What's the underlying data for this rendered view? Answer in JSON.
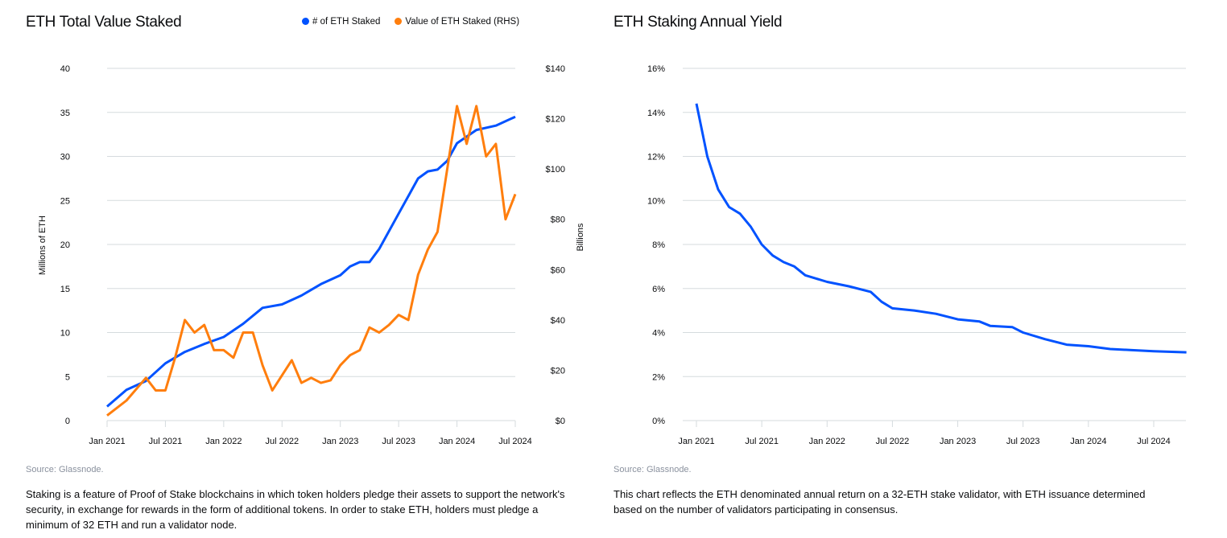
{
  "left": {
    "title": "ETH Total Value Staked",
    "legend": [
      {
        "label": "# of ETH Staked",
        "color": "#0052ff"
      },
      {
        "label": "Value of ETH Staked (RHS)",
        "color": "#ff7e0d"
      }
    ],
    "source": "Source: Glassnode.",
    "description": "Staking is a feature of Proof of Stake  blockchains in which token holders pledge their assets to support the network's security, in exchange for rewards in the form of additional tokens. In order to stake ETH, holders must pledge a minimum of 32 ETH and run a validator node."
  },
  "right": {
    "title": "ETH Staking Annual Yield",
    "source": "Source: Glassnode.",
    "description": "This chart reflects the ETH denominated annual return on a 32-ETH stake validator, with ETH issuance determined based on the number of validators participating in consensus."
  },
  "chart_data": [
    {
      "type": "line",
      "title": "ETH Total Value Staked",
      "ylabel": "Millions of ETH",
      "y2label": "Billions",
      "ylim": [
        0,
        40
      ],
      "y2lim": [
        0,
        140
      ],
      "grid": true,
      "legend": "top",
      "xticks": [
        "Jan 2021",
        "Jul 2021",
        "Jan 2022",
        "Jul 2022",
        "Jan 2023",
        "Jul 2023",
        "Jan 2024",
        "Jul 2024"
      ],
      "yticks": [
        "0",
        "5",
        "10",
        "15",
        "20",
        "25",
        "30",
        "35",
        "40"
      ],
      "y2ticks": [
        "$0",
        "$20",
        "$40",
        "$60",
        "$80",
        "$100",
        "$120",
        "$140"
      ],
      "series": [
        {
          "name": "# of ETH Staked",
          "axis": "left",
          "color": "#0052ff",
          "x": [
            "2021-01",
            "2021-03",
            "2021-05",
            "2021-07",
            "2021-09",
            "2021-11",
            "2022-01",
            "2022-03",
            "2022-05",
            "2022-07",
            "2022-09",
            "2022-11",
            "2023-01",
            "2023-02",
            "2023-03",
            "2023-04",
            "2023-05",
            "2023-07",
            "2023-09",
            "2023-10",
            "2023-11",
            "2023-12",
            "2024-01",
            "2024-03",
            "2024-05",
            "2024-07"
          ],
          "y": [
            1.6,
            3.5,
            4.5,
            6.5,
            7.8,
            8.7,
            9.5,
            11,
            12.8,
            13.2,
            14.2,
            15.5,
            16.5,
            17.5,
            18,
            18,
            19.5,
            23.5,
            27.5,
            28.3,
            28.5,
            29.5,
            31.5,
            33,
            33.5,
            34.5
          ]
        },
        {
          "name": "Value of ETH Staked (RHS)",
          "axis": "right",
          "color": "#ff7e0d",
          "x": [
            "2021-01",
            "2021-03",
            "2021-05",
            "2021-06",
            "2021-07",
            "2021-08",
            "2021-09",
            "2021-10",
            "2021-11",
            "2021-12",
            "2022-01",
            "2022-02",
            "2022-03",
            "2022-04",
            "2022-05",
            "2022-06",
            "2022-07",
            "2022-08",
            "2022-09",
            "2022-10",
            "2022-11",
            "2022-12",
            "2023-01",
            "2023-02",
            "2023-03",
            "2023-04",
            "2023-05",
            "2023-06",
            "2023-07",
            "2023-08",
            "2023-09",
            "2023-10",
            "2023-11",
            "2023-12",
            "2024-01",
            "2024-02",
            "2024-03",
            "2024-04",
            "2024-05",
            "2024-06",
            "2024-07"
          ],
          "y": [
            2,
            8,
            17,
            12,
            12,
            25,
            40,
            35,
            38,
            28,
            28,
            25,
            35,
            35,
            22,
            12,
            18,
            24,
            15,
            17,
            15,
            16,
            22,
            26,
            28,
            37,
            35,
            38,
            42,
            40,
            58,
            68,
            75,
            100,
            125,
            110,
            125,
            105,
            110,
            80,
            90
          ]
        }
      ]
    },
    {
      "type": "line",
      "title": "ETH Staking Annual Yield",
      "ylim": [
        0,
        16
      ],
      "grid": true,
      "xticks": [
        "Jan 2021",
        "Jul 2021",
        "Jan 2022",
        "Jul 2022",
        "Jan 2023",
        "Jul 2023",
        "Jan 2024",
        "Jul 2024"
      ],
      "yticks": [
        "0%",
        "2%",
        "4%",
        "6%",
        "8%",
        "10%",
        "12%",
        "14%",
        "16%"
      ],
      "series": [
        {
          "color": "#0052ff",
          "x": [
            "2021-01",
            "2021-02",
            "2021-03",
            "2021-04",
            "2021-05",
            "2021-06",
            "2021-07",
            "2021-08",
            "2021-09",
            "2021-10",
            "2021-11",
            "2021-12",
            "2022-01",
            "2022-03",
            "2022-05",
            "2022-06",
            "2022-07",
            "2022-09",
            "2022-11",
            "2023-01",
            "2023-03",
            "2023-04",
            "2023-06",
            "2023-07",
            "2023-09",
            "2023-11",
            "2024-01",
            "2024-03",
            "2024-05",
            "2024-07",
            "2024-10"
          ],
          "y": [
            14.4,
            12,
            10.5,
            9.7,
            9.4,
            8.8,
            8.0,
            7.5,
            7.2,
            7.0,
            6.6,
            6.45,
            6.3,
            6.1,
            5.85,
            5.4,
            5.1,
            5.0,
            4.85,
            4.6,
            4.5,
            4.3,
            4.25,
            4.0,
            3.7,
            3.45,
            3.38,
            3.25,
            3.2,
            3.15,
            3.1
          ]
        }
      ]
    }
  ]
}
